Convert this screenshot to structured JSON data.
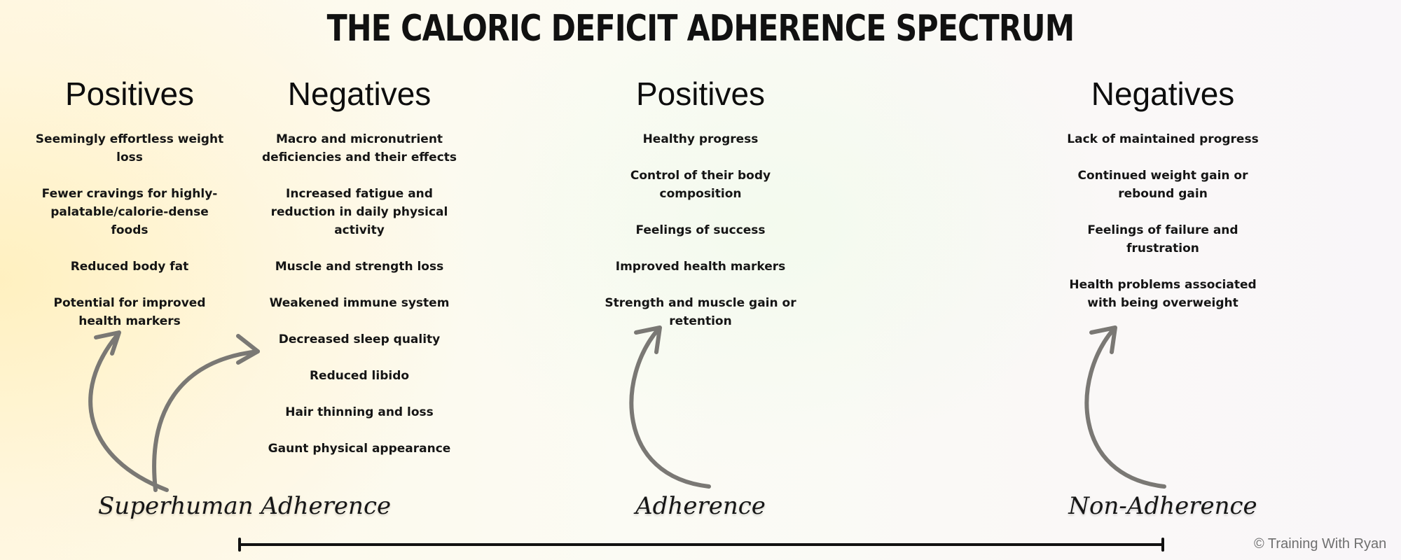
{
  "title": "THE CALORIC DEFICIT ADHERENCE SPECTRUM",
  "columns": [
    {
      "heading": "Positives",
      "items": [
        "Seemingly effortless weight loss",
        "Fewer cravings for highly-palatable/calorie-dense foods",
        "Reduced body fat",
        "Potential for improved health markers"
      ]
    },
    {
      "heading": "Negatives",
      "items": [
        "Macro and micronutrient deficiencies and their effects",
        "Increased fatigue and reduction in daily physical activity",
        "Muscle and strength loss",
        "Weakened immune system",
        "Decreased sleep quality",
        "Reduced libido",
        "Hair thinning and loss",
        "Gaunt physical appearance"
      ]
    },
    {
      "heading": "Positives",
      "items": [
        "Healthy progress",
        "Control of their body composition",
        "Feelings of success",
        "Improved health markers",
        "Strength and muscle gain or retention"
      ]
    },
    {
      "heading": "Negatives",
      "items": [
        "Lack of maintained progress",
        "Continued weight gain or rebound gain",
        "Feelings of failure and frustration",
        "Health problems associated with being overweight"
      ]
    }
  ],
  "spectrum": {
    "labels": [
      "Superhuman Adherence",
      "Adherence",
      "Non-Adherence"
    ]
  },
  "credit": "© Training With Ryan",
  "colors": {
    "arrow": "#7a7874",
    "axis": "#111111",
    "text": "#111111"
  }
}
